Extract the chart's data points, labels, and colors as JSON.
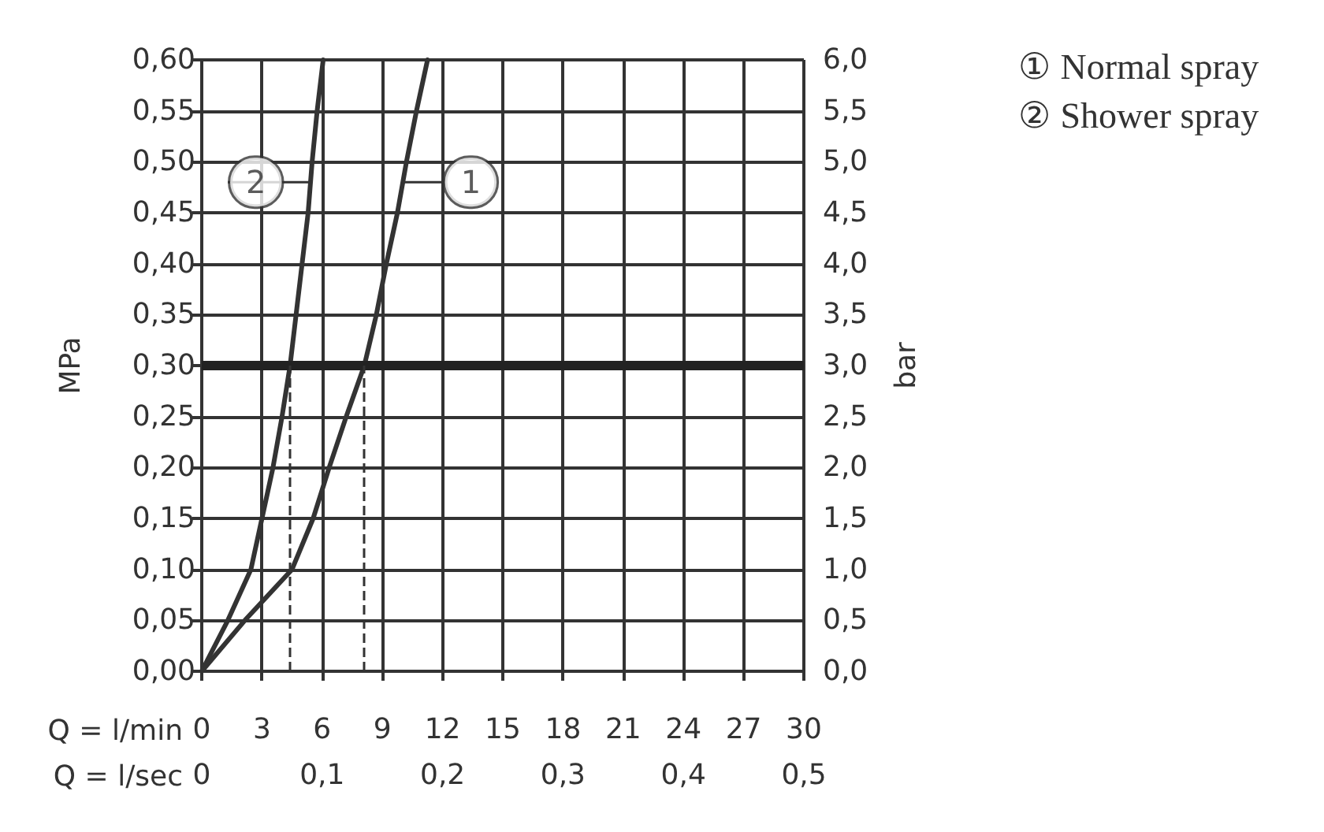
{
  "chart_data": {
    "type": "line",
    "xlabel": "Q = l/min",
    "x2label": "Q = l/sec",
    "ylabel": "MPa",
    "y2label": "bar",
    "xlim": [
      0,
      30
    ],
    "xticks": [
      0,
      3,
      6,
      9,
      12,
      15,
      18,
      21,
      24,
      27,
      30
    ],
    "x2lim": [
      0,
      0.5
    ],
    "x2ticks": [
      0,
      {
        "value": 0.1,
        "label": "0,1"
      },
      {
        "value": 0.2,
        "label": "0,2"
      },
      {
        "value": 0.3,
        "label": "0,3"
      },
      {
        "value": 0.4,
        "label": "0,4"
      },
      {
        "value": 0.5,
        "label": "0,5"
      }
    ],
    "ylim": [
      0,
      0.6
    ],
    "yticks": [
      {
        "value": 0,
        "label": "0,00"
      },
      {
        "value": 0.05,
        "label": "0,05"
      },
      {
        "value": 0.1,
        "label": "0,10"
      },
      {
        "value": 0.15,
        "label": "0,15"
      },
      {
        "value": 0.2,
        "label": "0,20"
      },
      {
        "value": 0.25,
        "label": "0,25"
      },
      {
        "value": 0.3,
        "label": "0,30"
      },
      {
        "value": 0.35,
        "label": "0,35"
      },
      {
        "value": 0.4,
        "label": "0,40"
      },
      {
        "value": 0.45,
        "label": "0,45"
      },
      {
        "value": 0.5,
        "label": "0,50"
      },
      {
        "value": 0.55,
        "label": "0,55"
      },
      {
        "value": 0.6,
        "label": "0,60"
      }
    ],
    "y2lim": [
      0,
      6
    ],
    "y2ticks": [
      {
        "value": 0,
        "label": "0,0"
      },
      {
        "value": 0.5,
        "label": "0,5"
      },
      {
        "value": 1,
        "label": "1,0"
      },
      {
        "value": 1.5,
        "label": "1,5"
      },
      {
        "value": 2,
        "label": "2,0"
      },
      {
        "value": 2.5,
        "label": "2,5"
      },
      {
        "value": 3,
        "label": "3,0"
      },
      {
        "value": 3.5,
        "label": "3,5"
      },
      {
        "value": 4,
        "label": "4,0"
      },
      {
        "value": 4.5,
        "label": "4,5"
      },
      {
        "value": 5,
        "label": "5,0"
      },
      {
        "value": 5.5,
        "label": "5,5"
      },
      {
        "value": 6,
        "label": "6,0"
      }
    ],
    "series": [
      {
        "name": "① Normal spray",
        "color": "#333333",
        "x": [
          0,
          2.15,
          4.5,
          5.55,
          6.35,
          7.2,
          8.1,
          8.7,
          9.2,
          9.75,
          10.2,
          10.7,
          11.25
        ],
        "values": [
          0,
          0.05,
          0.1,
          0.15,
          0.2,
          0.25,
          0.3,
          0.35,
          0.4,
          0.45,
          0.5,
          0.55,
          0.6
        ]
      },
      {
        "name": "② Shower spray",
        "color": "#333333",
        "x": [
          0,
          1.3,
          2.45,
          3.0,
          3.55,
          4.0,
          4.4,
          4.7,
          5.0,
          5.3,
          5.5,
          5.75,
          6.05
        ],
        "values": [
          0,
          0.05,
          0.1,
          0.15,
          0.2,
          0.25,
          0.3,
          0.35,
          0.4,
          0.45,
          0.5,
          0.55,
          0.6
        ]
      }
    ],
    "ref_lines": [
      {
        "axis": "y",
        "value": 0.3,
        "color": "#222222",
        "line_style": "solid"
      },
      {
        "axis": "x",
        "value": 4.4,
        "color": "#333333",
        "line_style": "dashed"
      },
      {
        "axis": "x",
        "value": 8.1,
        "color": "#333333",
        "line_style": "dashed"
      }
    ],
    "annotations": [
      {
        "text": "1",
        "x": 10.0,
        "y": 0.48
      },
      {
        "text": "2",
        "x": 5.4,
        "y": 0.48
      }
    ],
    "grid": true,
    "legend": "top right",
    "marker": "none",
    "line_style": "solid"
  }
}
